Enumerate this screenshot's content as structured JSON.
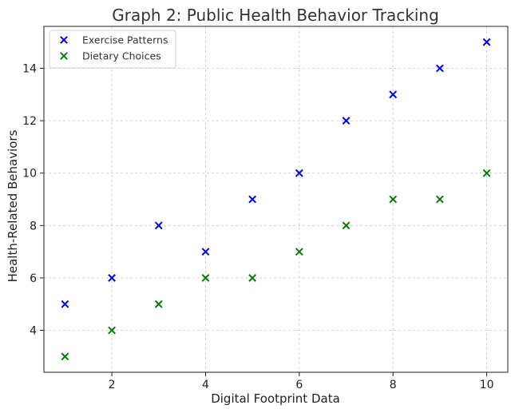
{
  "chart_data": {
    "type": "scatter",
    "title": "Graph 2: Public Health Behavior Tracking",
    "xlabel": "Digital Footprint Data",
    "ylabel": "Health-Related Behaviors",
    "xlim": [
      0.55,
      10.45
    ],
    "ylim": [
      2.4,
      15.6
    ],
    "xticks": [
      2,
      4,
      6,
      8,
      10
    ],
    "yticks": [
      4,
      6,
      8,
      10,
      12,
      14
    ],
    "grid": true,
    "legend_position": "top-left",
    "marker": "x",
    "series": [
      {
        "name": "Exercise Patterns",
        "color": "#0000ff",
        "x": [
          1,
          2,
          3,
          4,
          5,
          6,
          7,
          8,
          9,
          10
        ],
        "y": [
          5,
          6,
          8,
          7,
          9,
          10,
          12,
          13,
          14,
          15
        ]
      },
      {
        "name": "Dietary Choices",
        "color": "#008000",
        "x": [
          1,
          2,
          3,
          4,
          5,
          6,
          7,
          8,
          9,
          10
        ],
        "y": [
          3,
          4,
          5,
          6,
          6,
          7,
          8,
          9,
          9,
          10
        ]
      }
    ]
  }
}
